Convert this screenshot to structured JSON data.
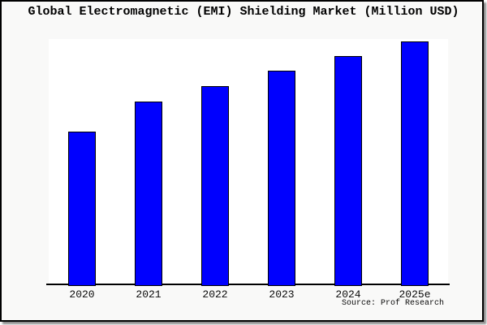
{
  "frame": {
    "background": "#f9f9f8",
    "border_color": "#000000",
    "plot_background": "#ffffff",
    "shadow_color": "#8e8e8e"
  },
  "chart_data": {
    "type": "bar",
    "title": "Global Electromagnetic (EMI) Shielding Market (Million USD)",
    "unit": "Million USD",
    "categories": [
      "2020",
      "2021",
      "2022",
      "2023",
      "2024",
      "2025e"
    ],
    "values_relative_pct": [
      62.9,
      75.2,
      81.6,
      87.9,
      93.9,
      100
    ],
    "y_axis_note": "no y-axis, ticks or gridlines are drawn; values are relative bar heights estimated from pixels, normalized so 2025e = 100",
    "xlabel": "",
    "ylabel": "",
    "grid": false,
    "legend": false,
    "bar_color": "#0000FE",
    "bar_border_color": "#000000",
    "axis_color": "#000000",
    "source_label": "Source: Prof Research"
  }
}
